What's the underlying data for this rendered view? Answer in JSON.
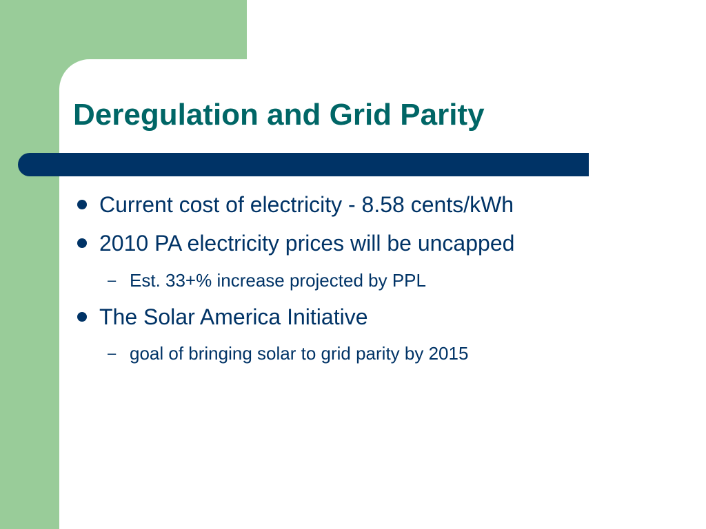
{
  "slide": {
    "title": "Deregulation and Grid Parity",
    "bullets": [
      {
        "level": 1,
        "marker": "bullet-dot",
        "text": "Current  cost of electricity - 8.58 cents/kWh"
      },
      {
        "level": 1,
        "marker": "bullet-dot",
        "text": "2010 PA electricity prices will be uncapped"
      },
      {
        "level": 2,
        "marker": "–",
        "text": "Est. 33+% increase projected by PPL"
      },
      {
        "level": 1,
        "marker": "bullet-dot",
        "text": "The Solar America Initiative"
      },
      {
        "level": 2,
        "marker": "–",
        "text": "goal of bringing solar to grid parity by 2015"
      }
    ]
  },
  "colors": {
    "title": "#006666",
    "text": "#003366",
    "accent_bar": "#003366",
    "side_block": "#99cc99",
    "background": "#ffffff"
  }
}
